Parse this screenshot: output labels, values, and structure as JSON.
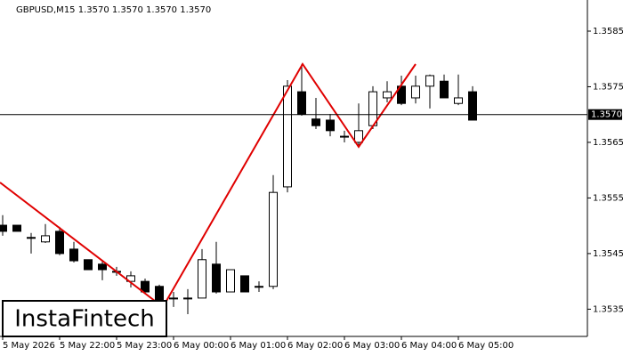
{
  "chart_data": {
    "type": "candlestick",
    "title": "GBPUSD,M15  1.3570 1.3570 1.3570 1.3570",
    "logo": "InstaFintech",
    "categories": [
      "5 May 2026",
      null,
      null,
      null,
      "5 May 22:00",
      null,
      null,
      null,
      "5 May 23:00",
      null,
      null,
      null,
      "6 May 00:00",
      null,
      null,
      null,
      "6 May 01:00",
      null,
      null,
      null,
      "6 May 02:00",
      null,
      null,
      null,
      "6 May 03:00",
      null,
      null,
      null,
      "6 May 04:00",
      null,
      null,
      null,
      "6 May 05:00",
      null
    ],
    "open": [
      1.35501,
      1.35501,
      1.35479,
      1.35471,
      1.3549,
      1.35458,
      1.35439,
      1.35431,
      1.35418,
      1.354,
      1.354,
      1.35391,
      1.3537,
      1.3537,
      1.3537,
      1.35431,
      1.35381,
      1.3541,
      1.35391,
      1.35391,
      1.3557,
      1.35741,
      1.35692,
      1.3569,
      1.35661,
      1.3565,
      1.3568,
      1.3573,
      1.35751,
      1.3573,
      1.35751,
      1.3576,
      1.3572,
      1.35741
    ],
    "high": [
      1.35519,
      1.35501,
      1.35487,
      1.35503,
      1.35498,
      1.35471,
      1.35439,
      1.35437,
      1.35426,
      1.35418,
      1.35405,
      1.35394,
      1.35381,
      1.35386,
      1.35458,
      1.35471,
      1.35421,
      1.3541,
      1.354,
      1.35591,
      1.35762,
      1.35791,
      1.3573,
      1.35701,
      1.35671,
      1.3572,
      1.35751,
      1.3576,
      1.3577,
      1.3577,
      1.35772,
      1.35772,
      1.35772,
      1.35751
    ],
    "low": [
      1.35482,
      1.3549,
      1.3545,
      1.35469,
      1.35447,
      1.35434,
      1.35421,
      1.35402,
      1.3541,
      1.35389,
      1.35378,
      1.35354,
      1.35354,
      1.35341,
      1.3537,
      1.35378,
      1.35381,
      1.35381,
      1.35381,
      1.35386,
      1.3556,
      1.35698,
      1.35674,
      1.35661,
      1.3565,
      1.35642,
      1.35674,
      1.35722,
      1.35717,
      1.3572,
      1.35711,
      1.3573,
      1.35717,
      1.3569
    ],
    "close": [
      1.3549,
      1.3549,
      1.35479,
      1.35482,
      1.3545,
      1.35437,
      1.35421,
      1.35421,
      1.35418,
      1.3541,
      1.35381,
      1.35362,
      1.3537,
      1.3537,
      1.35439,
      1.35381,
      1.35421,
      1.35381,
      1.35391,
      1.3556,
      1.35751,
      1.35701,
      1.3568,
      1.35671,
      1.35661,
      1.35671,
      1.35741,
      1.35741,
      1.3572,
      1.35751,
      1.3577,
      1.3573,
      1.3573,
      1.3569
    ],
    "up_color": "#ffffff",
    "down_color": "#000000",
    "current_price": {
      "value": 1.357,
      "label": "1.3570"
    },
    "ylim": [
      1.35301,
      1.35906
    ],
    "yticks": [
      1.3535,
      1.3545,
      1.3555,
      1.3565,
      1.3575,
      1.3585
    ],
    "grid": false
  }
}
